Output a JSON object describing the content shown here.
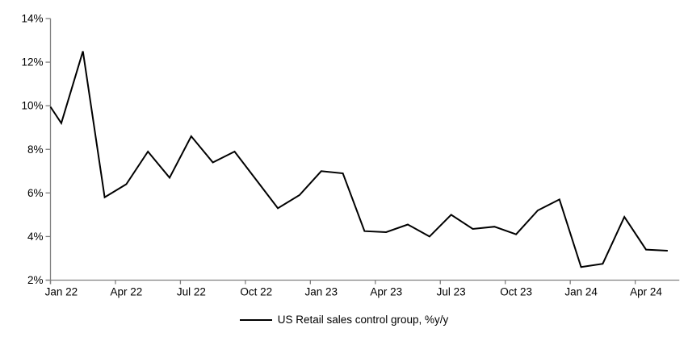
{
  "chart_data": {
    "type": "line",
    "title": "",
    "legend": "US Retail sales control group, %y/y",
    "series_color": "#000000",
    "axis_color": "#808080",
    "text_color": "#000000",
    "background_color": "#ffffff",
    "grid": "off",
    "legend_position": "bottom-center",
    "ylim": [
      2,
      14
    ],
    "y_ticks": [
      2,
      4,
      6,
      8,
      10,
      12,
      14
    ],
    "y_tick_labels": [
      "2%",
      "4%",
      "6%",
      "8%",
      "10%",
      "12%",
      "14%"
    ],
    "x": [
      "Jan 22",
      "Feb 22",
      "Mar 22",
      "Apr 22",
      "May 22",
      "Jun 22",
      "Jul 22",
      "Aug 22",
      "Sep 22",
      "Oct 22",
      "Nov 22",
      "Dec 22",
      "Jan 23",
      "Feb 23",
      "Mar 23",
      "Apr 23",
      "May 23",
      "Jun 23",
      "Jul 23",
      "Aug 23",
      "Sep 23",
      "Oct 23",
      "Nov 23",
      "Dec 23",
      "Jan 24",
      "Feb 24",
      "Mar 24",
      "Apr 24",
      "May 24"
    ],
    "values": [
      9.2,
      12.5,
      5.8,
      6.4,
      7.9,
      6.7,
      8.6,
      7.4,
      7.9,
      6.6,
      5.3,
      5.9,
      7.0,
      6.9,
      4.25,
      4.2,
      4.55,
      4.0,
      5.0,
      4.35,
      4.45,
      4.1,
      5.2,
      5.7,
      2.6,
      2.75,
      4.9,
      3.4,
      3.35
    ],
    "x_tick_labels": [
      "Jan 22",
      "Apr 22",
      "Jul 22",
      "Oct 22",
      "Jan 23",
      "Apr 23",
      "Jul 23",
      "Oct 23",
      "Jan 24",
      "Apr 24"
    ],
    "x_tick_every_months": 3,
    "line_starts_at_y_axis": true,
    "y_axis_intercept_value": 9.95
  }
}
